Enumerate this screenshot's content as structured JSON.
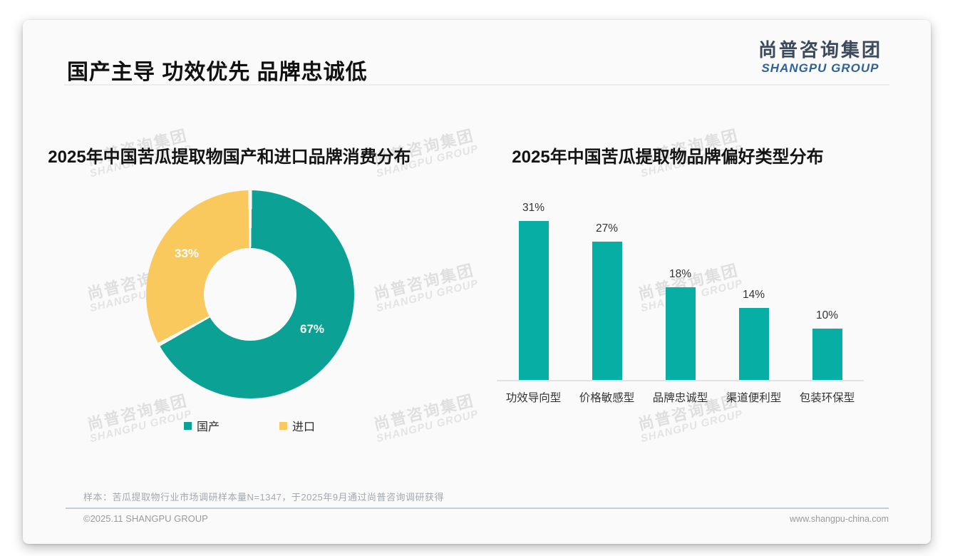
{
  "slide": {
    "title": "国产主导 功效优先 品牌忠诚低",
    "logo": {
      "cn": "尚普咨询集团",
      "en": "SHANGPU GROUP"
    },
    "watermark": {
      "line1": "尚普咨询集团",
      "line2": "SHANGPU GROUP"
    },
    "footer": {
      "note": "样本：苦瓜提取物行业市场调研样本量N=1347，于2025年9月通过尚普咨询调研获得",
      "copyright": "©2025.11 SHANGPU GROUP",
      "website": "www.shangpu-china.com"
    }
  },
  "colors": {
    "donut_teal": "#0ba295",
    "donut_yellow": "#f9c95e",
    "bar_teal": "#07aea4",
    "slide_bg": "#fafafa"
  },
  "chart_data": [
    {
      "type": "pie",
      "donut": true,
      "title": "2025年中国苦瓜提取物国产和进口品牌消费分布",
      "labels": [
        "国产",
        "进口"
      ],
      "values": [
        67,
        33
      ],
      "value_labels": [
        "67%",
        "33%"
      ],
      "colors": [
        "#0ba295",
        "#f9c95e"
      ],
      "legend_position": "bottom",
      "label_color": "#ffffff"
    },
    {
      "type": "bar",
      "title": "2025年中国苦瓜提取物品牌偏好类型分布",
      "categories": [
        "功效导向型",
        "价格敏感型",
        "品牌忠诚型",
        "渠道便利型",
        "包装环保型"
      ],
      "values": [
        31,
        27,
        18,
        14,
        10
      ],
      "value_labels": [
        "31%",
        "27%",
        "18%",
        "14%",
        "10%"
      ],
      "bar_color": "#07aea4",
      "xlabel": "",
      "ylabel": "",
      "ylim": [
        0,
        35
      ],
      "grid": false,
      "legend": false
    }
  ]
}
